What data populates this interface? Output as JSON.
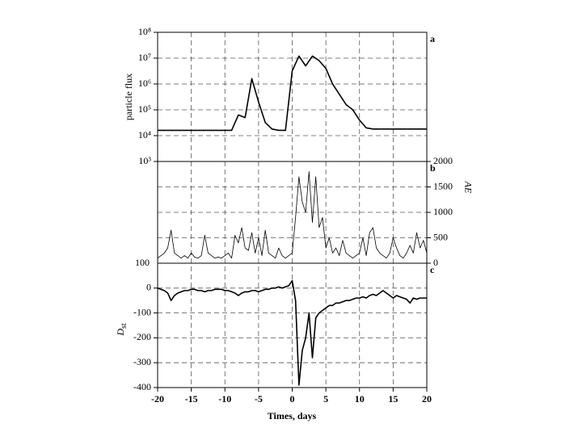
{
  "chart_data": [
    {
      "type": "line",
      "ylabel": "particle flux",
      "annotation": "a",
      "log": true,
      "color": "#000000",
      "x": [
        -20,
        -9,
        -8,
        -7,
        -6,
        -5,
        -4,
        -3,
        -2,
        -1,
        0,
        1,
        2,
        3,
        4,
        5,
        6,
        7,
        8,
        9,
        10,
        11,
        12,
        15,
        20
      ],
      "values": [
        16000,
        16000,
        63000,
        50000,
        1600000,
        200000,
        32000,
        18000,
        16000,
        16000,
        3200000,
        12000000,
        5000000,
        12000000,
        8000000,
        4000000,
        1000000,
        400000,
        160000,
        100000,
        40000,
        20000,
        18000,
        18000,
        18000
      ],
      "xlim": [
        -20,
        20
      ],
      "ylim": [
        1000,
        100000000
      ],
      "yticks": [
        {
          "value": 1000,
          "label": "10³"
        },
        {
          "value": 10000,
          "label": "10⁴"
        },
        {
          "value": 100000,
          "label": "10⁵"
        },
        {
          "value": 1000000,
          "label": "10⁶"
        },
        {
          "value": 10000000,
          "label": "10⁷"
        },
        {
          "value": 100000000,
          "label": "10⁸"
        }
      ],
      "grid": true
    },
    {
      "type": "line",
      "ylabel": "AE",
      "annotation": "b",
      "left_label": "100",
      "yaxis_side": "right",
      "color": "#000000",
      "x": [
        -20,
        -19.5,
        -19,
        -18.5,
        -18,
        -17.5,
        -17,
        -16.5,
        -16,
        -15.5,
        -15,
        -14.5,
        -14,
        -13.5,
        -13,
        -12.5,
        -12,
        -11.5,
        -11,
        -10.5,
        -10,
        -9.5,
        -9,
        -8.5,
        -8,
        -7.5,
        -7,
        -6.5,
        -6,
        -5.5,
        -5,
        -4.5,
        -4,
        -3.5,
        -3,
        -2.5,
        -2,
        -1.5,
        -1,
        -0.5,
        0,
        0.5,
        1,
        1.5,
        2,
        2.5,
        3,
        3.5,
        4,
        4.5,
        5,
        5.5,
        6,
        6.5,
        7,
        7.5,
        8,
        8.5,
        9,
        9.5,
        10,
        10.5,
        11,
        11.5,
        12,
        12.5,
        13,
        13.5,
        14,
        14.5,
        15,
        15.5,
        16,
        16.5,
        17,
        17.5,
        18,
        18.5,
        19,
        19.5,
        20
      ],
      "values": [
        100,
        150,
        200,
        300,
        650,
        200,
        150,
        100,
        150,
        100,
        200,
        120,
        100,
        150,
        550,
        200,
        150,
        100,
        120,
        100,
        150,
        200,
        100,
        550,
        400,
        700,
        300,
        250,
        600,
        200,
        500,
        150,
        650,
        200,
        150,
        100,
        300,
        150,
        100,
        150,
        200,
        900,
        1700,
        1200,
        1000,
        1800,
        800,
        1700,
        700,
        900,
        300,
        500,
        200,
        300,
        150,
        450,
        200,
        150,
        100,
        150,
        200,
        500,
        150,
        600,
        700,
        300,
        200,
        150,
        100,
        200,
        500,
        300,
        150,
        100,
        200,
        350,
        200,
        600,
        300,
        450,
        200
      ],
      "xlim": [
        -20,
        20
      ],
      "ylim": [
        0,
        2000
      ],
      "yticks": [
        0,
        500,
        1000,
        1500,
        2000
      ],
      "grid": true
    },
    {
      "type": "line",
      "ylabel": "D",
      "ylabel_sub": "st",
      "annotation": "c",
      "xlabel": "Times, days",
      "color": "#000000",
      "x": [
        -20,
        -19.5,
        -19,
        -18.5,
        -18,
        -17.5,
        -17,
        -16.5,
        -16,
        -15.5,
        -15,
        -14.5,
        -14,
        -13.5,
        -13,
        -12.5,
        -12,
        -11.5,
        -11,
        -10.5,
        -10,
        -9.5,
        -9,
        -8.5,
        -8,
        -7.5,
        -7,
        -6.5,
        -6,
        -5.5,
        -5,
        -4.5,
        -4,
        -3.5,
        -3,
        -2.5,
        -2,
        -1.5,
        -1,
        -0.5,
        0,
        0.5,
        1,
        1.5,
        2,
        2.5,
        3,
        3.5,
        4,
        4.5,
        5,
        5.5,
        6,
        6.5,
        7,
        7.5,
        8,
        8.5,
        9,
        9.5,
        10,
        10.5,
        11,
        11.5,
        12,
        12.5,
        13,
        13.5,
        14,
        14.5,
        15,
        15.5,
        16,
        16.5,
        17,
        17.5,
        18,
        18.5,
        19,
        19.5,
        20
      ],
      "values": [
        0,
        -5,
        -10,
        -20,
        -50,
        -30,
        -20,
        -15,
        -10,
        -10,
        -5,
        -5,
        -10,
        -10,
        -15,
        -10,
        -10,
        -5,
        -5,
        -5,
        -10,
        -10,
        -15,
        -20,
        -30,
        -20,
        -15,
        -15,
        -10,
        -10,
        -15,
        -10,
        -5,
        -5,
        0,
        0,
        5,
        0,
        5,
        10,
        30,
        -50,
        -390,
        -250,
        -200,
        -100,
        -280,
        -120,
        -100,
        -90,
        -80,
        -70,
        -70,
        -60,
        -60,
        -55,
        -50,
        -50,
        -45,
        -40,
        -40,
        -35,
        -40,
        -30,
        -25,
        -30,
        -20,
        -10,
        -20,
        -30,
        -40,
        -30,
        -35,
        -40,
        -45,
        -60,
        -40,
        -45,
        -40,
        -40,
        -40
      ],
      "xlim": [
        -20,
        20
      ],
      "xticks": [
        -20,
        -15,
        -10,
        -5,
        0,
        5,
        10,
        15,
        20
      ],
      "ylim": [
        -400,
        100
      ],
      "yticks": [
        -400,
        -300,
        -200,
        -100,
        0
      ],
      "grid": true
    }
  ]
}
